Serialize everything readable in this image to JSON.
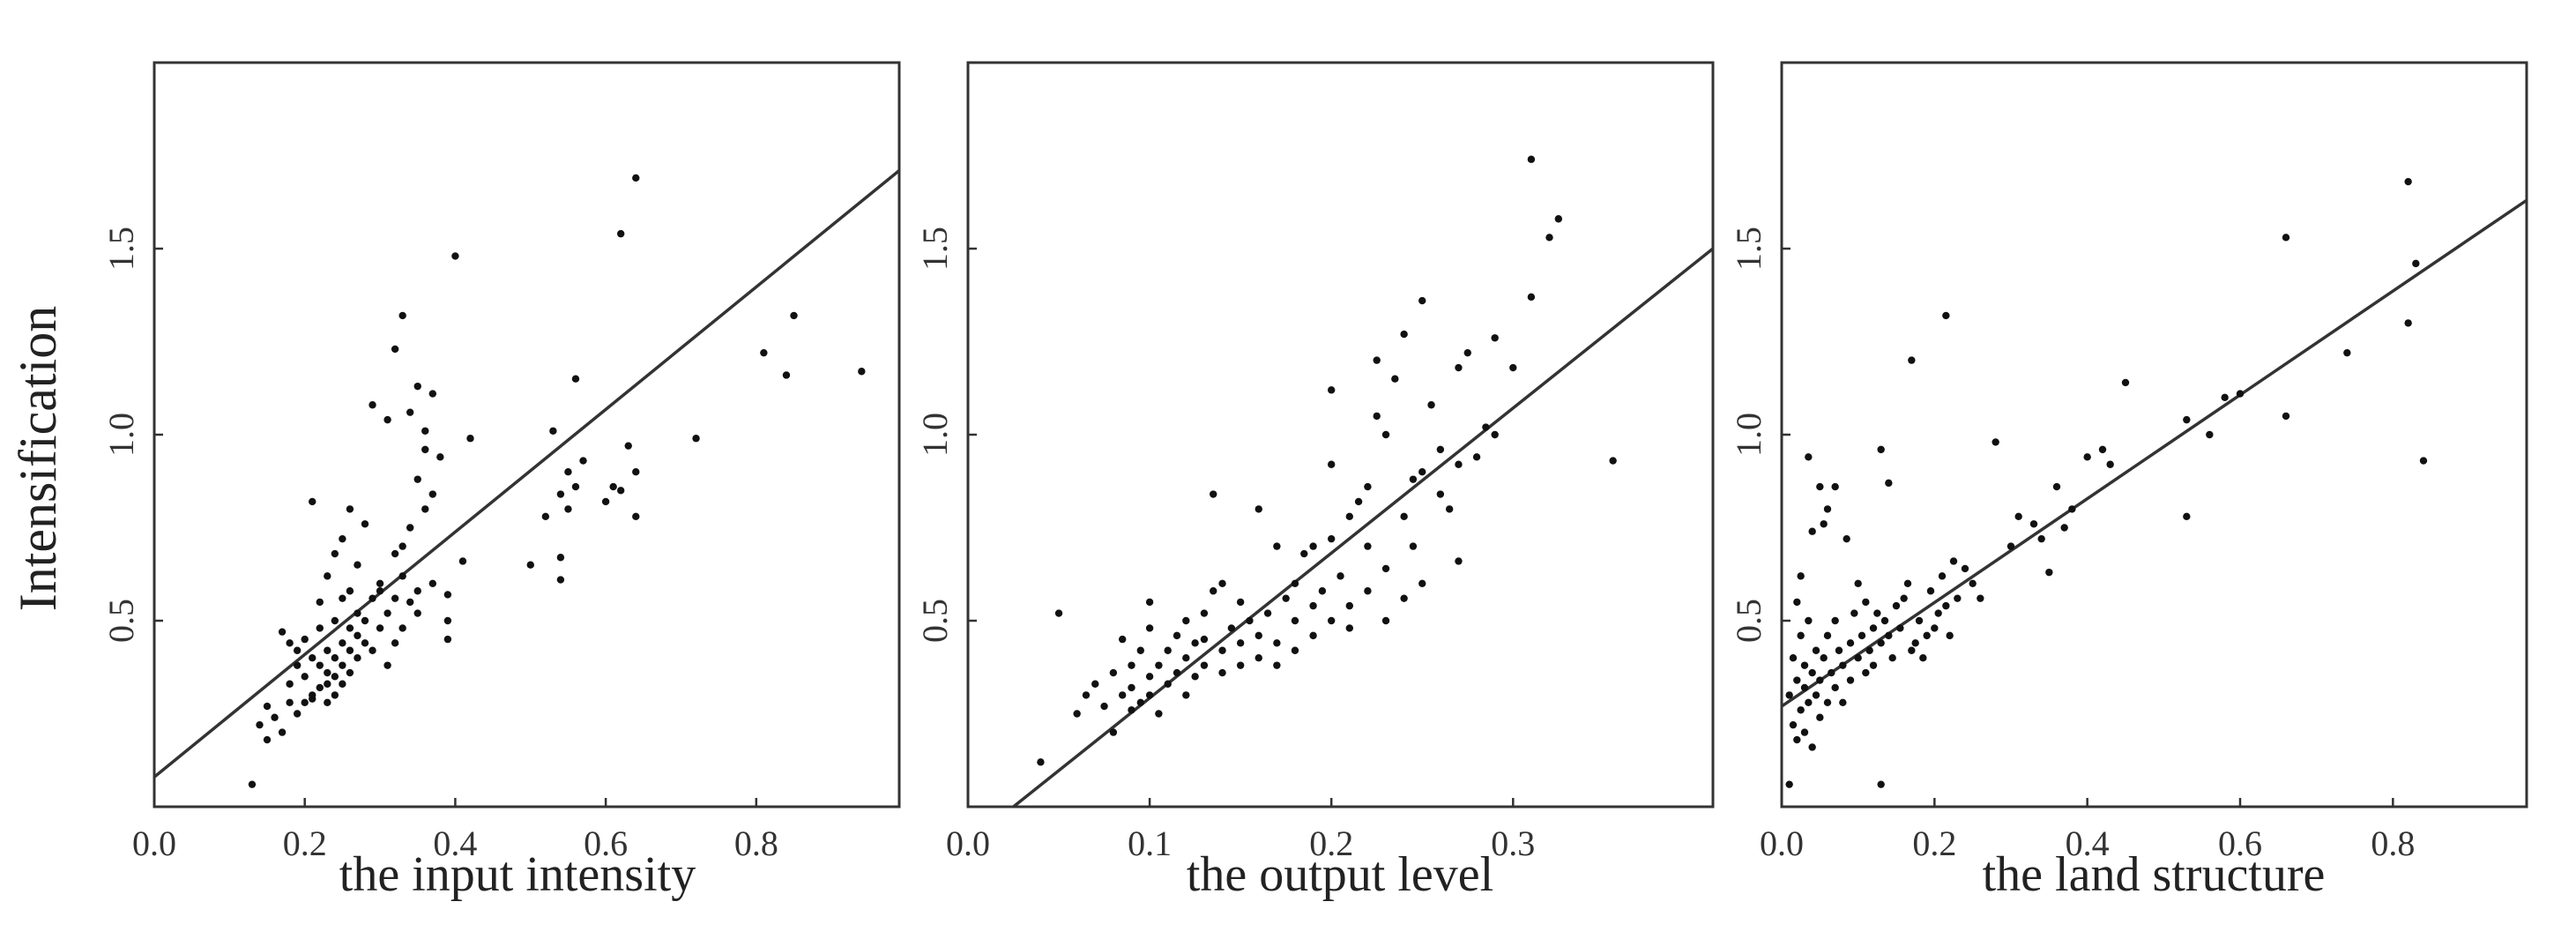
{
  "figure": {
    "ylabel": "Intensification"
  },
  "chart_data": [
    {
      "type": "scatter",
      "title": "",
      "xlabel": "the input intensity",
      "ylabel": "Intensification",
      "xlim": [
        0,
        0.99
      ],
      "ylim": [
        0,
        2.0
      ],
      "xticks": [
        0.0,
        0.2,
        0.4,
        0.6,
        0.8
      ],
      "xtick_labels": [
        "0.0",
        "0.2",
        "0.4",
        "0.6",
        "0.8"
      ],
      "yticks": [
        0.5,
        1.0,
        1.5
      ],
      "ytick_labels": [
        "0.5",
        "1.0",
        "1.5"
      ],
      "grid": false,
      "fit_line": [
        [
          0.0,
          0.08
        ],
        [
          0.99,
          1.71
        ]
      ],
      "points": [
        [
          0.13,
          0.06
        ],
        [
          0.14,
          0.22
        ],
        [
          0.15,
          0.18
        ],
        [
          0.15,
          0.27
        ],
        [
          0.16,
          0.24
        ],
        [
          0.17,
          0.2
        ],
        [
          0.17,
          0.47
        ],
        [
          0.18,
          0.28
        ],
        [
          0.18,
          0.44
        ],
        [
          0.18,
          0.33
        ],
        [
          0.19,
          0.25
        ],
        [
          0.19,
          0.38
        ],
        [
          0.19,
          0.42
        ],
        [
          0.2,
          0.28
        ],
        [
          0.2,
          0.35
        ],
        [
          0.2,
          0.45
        ],
        [
          0.21,
          0.29
        ],
        [
          0.21,
          0.4
        ],
        [
          0.21,
          0.3
        ],
        [
          0.21,
          0.82
        ],
        [
          0.22,
          0.55
        ],
        [
          0.22,
          0.32
        ],
        [
          0.22,
          0.38
        ],
        [
          0.22,
          0.48
        ],
        [
          0.23,
          0.33
        ],
        [
          0.23,
          0.42
        ],
        [
          0.23,
          0.36
        ],
        [
          0.23,
          0.62
        ],
        [
          0.23,
          0.28
        ],
        [
          0.24,
          0.4
        ],
        [
          0.24,
          0.35
        ],
        [
          0.24,
          0.5
        ],
        [
          0.24,
          0.3
        ],
        [
          0.24,
          0.68
        ],
        [
          0.25,
          0.38
        ],
        [
          0.25,
          0.44
        ],
        [
          0.25,
          0.33
        ],
        [
          0.25,
          0.56
        ],
        [
          0.25,
          0.72
        ],
        [
          0.26,
          0.42
        ],
        [
          0.26,
          0.36
        ],
        [
          0.26,
          0.48
        ],
        [
          0.26,
          0.58
        ],
        [
          0.26,
          0.8
        ],
        [
          0.27,
          0.46
        ],
        [
          0.27,
          0.52
        ],
        [
          0.27,
          0.4
        ],
        [
          0.27,
          0.65
        ],
        [
          0.28,
          0.44
        ],
        [
          0.28,
          0.5
        ],
        [
          0.28,
          0.76
        ],
        [
          0.29,
          0.56
        ],
        [
          0.29,
          0.42
        ],
        [
          0.29,
          1.08
        ],
        [
          0.3,
          0.58
        ],
        [
          0.3,
          0.48
        ],
        [
          0.3,
          0.6
        ],
        [
          0.31,
          0.38
        ],
        [
          0.31,
          0.52
        ],
        [
          0.31,
          1.04
        ],
        [
          0.32,
          0.56
        ],
        [
          0.32,
          0.68
        ],
        [
          0.32,
          0.44
        ],
        [
          0.32,
          1.23
        ],
        [
          0.33,
          0.7
        ],
        [
          0.33,
          0.62
        ],
        [
          0.33,
          1.32
        ],
        [
          0.33,
          0.48
        ],
        [
          0.34,
          0.55
        ],
        [
          0.34,
          0.75
        ],
        [
          0.34,
          1.06
        ],
        [
          0.35,
          0.52
        ],
        [
          0.35,
          0.58
        ],
        [
          0.35,
          0.88
        ],
        [
          0.35,
          1.13
        ],
        [
          0.36,
          0.96
        ],
        [
          0.36,
          0.8
        ],
        [
          0.36,
          1.01
        ],
        [
          0.37,
          0.84
        ],
        [
          0.37,
          0.6
        ],
        [
          0.37,
          1.11
        ],
        [
          0.38,
          0.94
        ],
        [
          0.39,
          0.57
        ],
        [
          0.39,
          0.45
        ],
        [
          0.39,
          0.5
        ],
        [
          0.4,
          1.48
        ],
        [
          0.41,
          0.66
        ],
        [
          0.42,
          0.99
        ],
        [
          0.5,
          0.65
        ],
        [
          0.52,
          0.78
        ],
        [
          0.53,
          1.01
        ],
        [
          0.54,
          0.61
        ],
        [
          0.54,
          0.67
        ],
        [
          0.54,
          0.84
        ],
        [
          0.55,
          0.8
        ],
        [
          0.55,
          0.9
        ],
        [
          0.56,
          1.15
        ],
        [
          0.56,
          0.86
        ],
        [
          0.57,
          0.93
        ],
        [
          0.6,
          0.82
        ],
        [
          0.61,
          0.86
        ],
        [
          0.62,
          0.85
        ],
        [
          0.62,
          1.54
        ],
        [
          0.63,
          0.97
        ],
        [
          0.64,
          0.78
        ],
        [
          0.64,
          0.9
        ],
        [
          0.64,
          1.69
        ],
        [
          0.72,
          0.99
        ],
        [
          0.81,
          1.22
        ],
        [
          0.84,
          1.16
        ],
        [
          0.85,
          1.32
        ],
        [
          0.94,
          1.17
        ]
      ]
    },
    {
      "type": "scatter",
      "title": "",
      "xlabel": "the output level",
      "ylabel": "",
      "xlim": [
        0,
        0.41
      ],
      "ylim": [
        0,
        2.0
      ],
      "xticks": [
        0.0,
        0.1,
        0.2,
        0.3
      ],
      "xtick_labels": [
        "0.0",
        "0.1",
        "0.2",
        "0.3"
      ],
      "yticks": [
        0.5,
        1.0,
        1.5
      ],
      "ytick_labels": [
        "0.5",
        "1.0",
        "1.5"
      ],
      "grid": false,
      "fit_line": [
        [
          0.025,
          0.0
        ],
        [
          0.41,
          1.5
        ]
      ],
      "points": [
        [
          0.04,
          0.12
        ],
        [
          0.05,
          0.52
        ],
        [
          0.06,
          0.25
        ],
        [
          0.065,
          0.3
        ],
        [
          0.07,
          0.33
        ],
        [
          0.075,
          0.27
        ],
        [
          0.08,
          0.2
        ],
        [
          0.08,
          0.36
        ],
        [
          0.085,
          0.3
        ],
        [
          0.085,
          0.45
        ],
        [
          0.09,
          0.26
        ],
        [
          0.09,
          0.38
        ],
        [
          0.09,
          0.32
        ],
        [
          0.095,
          0.42
        ],
        [
          0.095,
          0.28
        ],
        [
          0.1,
          0.35
        ],
        [
          0.1,
          0.48
        ],
        [
          0.1,
          0.3
        ],
        [
          0.1,
          0.55
        ],
        [
          0.105,
          0.38
        ],
        [
          0.105,
          0.25
        ],
        [
          0.11,
          0.42
        ],
        [
          0.11,
          0.33
        ],
        [
          0.115,
          0.46
        ],
        [
          0.115,
          0.36
        ],
        [
          0.12,
          0.4
        ],
        [
          0.12,
          0.3
        ],
        [
          0.12,
          0.5
        ],
        [
          0.125,
          0.44
        ],
        [
          0.125,
          0.35
        ],
        [
          0.13,
          0.38
        ],
        [
          0.13,
          0.52
        ],
        [
          0.13,
          0.45
        ],
        [
          0.135,
          0.84
        ],
        [
          0.135,
          0.58
        ],
        [
          0.14,
          0.42
        ],
        [
          0.14,
          0.36
        ],
        [
          0.14,
          0.6
        ],
        [
          0.145,
          0.48
        ],
        [
          0.15,
          0.44
        ],
        [
          0.15,
          0.38
        ],
        [
          0.15,
          0.55
        ],
        [
          0.155,
          0.5
        ],
        [
          0.16,
          0.46
        ],
        [
          0.16,
          0.4
        ],
        [
          0.16,
          0.8
        ],
        [
          0.165,
          0.52
        ],
        [
          0.17,
          0.7
        ],
        [
          0.17,
          0.44
        ],
        [
          0.17,
          0.38
        ],
        [
          0.175,
          0.56
        ],
        [
          0.18,
          0.5
        ],
        [
          0.18,
          0.6
        ],
        [
          0.18,
          0.42
        ],
        [
          0.185,
          0.68
        ],
        [
          0.19,
          0.54
        ],
        [
          0.19,
          0.46
        ],
        [
          0.19,
          0.7
        ],
        [
          0.195,
          0.58
        ],
        [
          0.2,
          0.72
        ],
        [
          0.2,
          0.5
        ],
        [
          0.2,
          0.92
        ],
        [
          0.2,
          1.12
        ],
        [
          0.205,
          0.62
        ],
        [
          0.21,
          0.78
        ],
        [
          0.21,
          0.54
        ],
        [
          0.21,
          0.48
        ],
        [
          0.215,
          0.82
        ],
        [
          0.22,
          0.58
        ],
        [
          0.22,
          0.7
        ],
        [
          0.22,
          0.86
        ],
        [
          0.225,
          1.2
        ],
        [
          0.225,
          1.05
        ],
        [
          0.23,
          0.5
        ],
        [
          0.23,
          0.64
        ],
        [
          0.23,
          1.0
        ],
        [
          0.235,
          1.15
        ],
        [
          0.24,
          0.56
        ],
        [
          0.24,
          0.78
        ],
        [
          0.24,
          1.27
        ],
        [
          0.245,
          0.88
        ],
        [
          0.245,
          0.7
        ],
        [
          0.25,
          1.36
        ],
        [
          0.25,
          0.6
        ],
        [
          0.25,
          0.9
        ],
        [
          0.255,
          1.08
        ],
        [
          0.26,
          0.84
        ],
        [
          0.26,
          0.96
        ],
        [
          0.265,
          0.8
        ],
        [
          0.27,
          1.18
        ],
        [
          0.27,
          0.66
        ],
        [
          0.27,
          0.92
        ],
        [
          0.275,
          1.22
        ],
        [
          0.28,
          0.94
        ],
        [
          0.285,
          1.02
        ],
        [
          0.29,
          1.0
        ],
        [
          0.29,
          1.26
        ],
        [
          0.3,
          1.18
        ],
        [
          0.31,
          1.37
        ],
        [
          0.31,
          1.74
        ],
        [
          0.32,
          1.53
        ],
        [
          0.325,
          1.58
        ],
        [
          0.355,
          0.93
        ]
      ]
    },
    {
      "type": "scatter",
      "title": "",
      "xlabel": "the land structure",
      "ylabel": "",
      "xlim": [
        0,
        0.975
      ],
      "ylim": [
        0,
        2.0
      ],
      "xticks": [
        0.0,
        0.2,
        0.4,
        0.6,
        0.8
      ],
      "xtick_labels": [
        "0.0",
        "0.2",
        "0.4",
        "0.6",
        "0.8"
      ],
      "yticks": [
        0.5,
        1.0,
        1.5
      ],
      "ytick_labels": [
        "0.5",
        "1.0",
        "1.5"
      ],
      "grid": false,
      "fit_line": [
        [
          0.0,
          0.27
        ],
        [
          0.975,
          1.63
        ]
      ],
      "points": [
        [
          0.01,
          0.06
        ],
        [
          0.01,
          0.3
        ],
        [
          0.015,
          0.22
        ],
        [
          0.015,
          0.4
        ],
        [
          0.02,
          0.18
        ],
        [
          0.02,
          0.34
        ],
        [
          0.02,
          0.55
        ],
        [
          0.025,
          0.26
        ],
        [
          0.025,
          0.46
        ],
        [
          0.025,
          0.62
        ],
        [
          0.03,
          0.2
        ],
        [
          0.03,
          0.32
        ],
        [
          0.03,
          0.38
        ],
        [
          0.035,
          0.28
        ],
        [
          0.035,
          0.5
        ],
        [
          0.035,
          0.94
        ],
        [
          0.04,
          0.16
        ],
        [
          0.04,
          0.36
        ],
        [
          0.04,
          0.74
        ],
        [
          0.045,
          0.3
        ],
        [
          0.045,
          0.42
        ],
        [
          0.05,
          0.24
        ],
        [
          0.05,
          0.34
        ],
        [
          0.05,
          0.86
        ],
        [
          0.055,
          0.4
        ],
        [
          0.055,
          0.76
        ],
        [
          0.06,
          0.28
        ],
        [
          0.06,
          0.46
        ],
        [
          0.06,
          0.8
        ],
        [
          0.065,
          0.36
        ],
        [
          0.07,
          0.32
        ],
        [
          0.07,
          0.5
        ],
        [
          0.07,
          0.86
        ],
        [
          0.075,
          0.42
        ],
        [
          0.08,
          0.38
        ],
        [
          0.08,
          0.28
        ],
        [
          0.085,
          0.72
        ],
        [
          0.09,
          0.44
        ],
        [
          0.09,
          0.34
        ],
        [
          0.095,
          0.52
        ],
        [
          0.1,
          0.4
        ],
        [
          0.1,
          0.6
        ],
        [
          0.105,
          0.46
        ],
        [
          0.11,
          0.36
        ],
        [
          0.11,
          0.55
        ],
        [
          0.115,
          0.42
        ],
        [
          0.12,
          0.48
        ],
        [
          0.12,
          0.38
        ],
        [
          0.125,
          0.52
        ],
        [
          0.13,
          0.44
        ],
        [
          0.13,
          0.96
        ],
        [
          0.13,
          0.06
        ],
        [
          0.135,
          0.5
        ],
        [
          0.14,
          0.46
        ],
        [
          0.14,
          0.87
        ],
        [
          0.145,
          0.4
        ],
        [
          0.15,
          0.54
        ],
        [
          0.155,
          0.48
        ],
        [
          0.16,
          0.56
        ],
        [
          0.165,
          0.6
        ],
        [
          0.17,
          0.42
        ],
        [
          0.17,
          1.2
        ],
        [
          0.175,
          0.44
        ],
        [
          0.18,
          0.5
        ],
        [
          0.185,
          0.4
        ],
        [
          0.19,
          0.46
        ],
        [
          0.195,
          0.58
        ],
        [
          0.2,
          0.48
        ],
        [
          0.205,
          0.52
        ],
        [
          0.21,
          0.62
        ],
        [
          0.215,
          0.54
        ],
        [
          0.215,
          1.32
        ],
        [
          0.22,
          0.46
        ],
        [
          0.225,
          0.66
        ],
        [
          0.23,
          0.56
        ],
        [
          0.24,
          0.64
        ],
        [
          0.25,
          0.6
        ],
        [
          0.26,
          0.56
        ],
        [
          0.28,
          0.98
        ],
        [
          0.3,
          0.7
        ],
        [
          0.31,
          0.78
        ],
        [
          0.33,
          0.76
        ],
        [
          0.34,
          0.72
        ],
        [
          0.35,
          0.63
        ],
        [
          0.36,
          0.86
        ],
        [
          0.37,
          0.75
        ],
        [
          0.38,
          0.8
        ],
        [
          0.4,
          0.94
        ],
        [
          0.42,
          0.96
        ],
        [
          0.43,
          0.92
        ],
        [
          0.45,
          1.14
        ],
        [
          0.53,
          1.04
        ],
        [
          0.53,
          0.78
        ],
        [
          0.56,
          1.0
        ],
        [
          0.58,
          1.1
        ],
        [
          0.6,
          1.11
        ],
        [
          0.66,
          1.05
        ],
        [
          0.66,
          1.53
        ],
        [
          0.74,
          1.22
        ],
        [
          0.82,
          1.3
        ],
        [
          0.82,
          1.68
        ],
        [
          0.83,
          1.46
        ],
        [
          0.84,
          0.93
        ]
      ]
    }
  ]
}
